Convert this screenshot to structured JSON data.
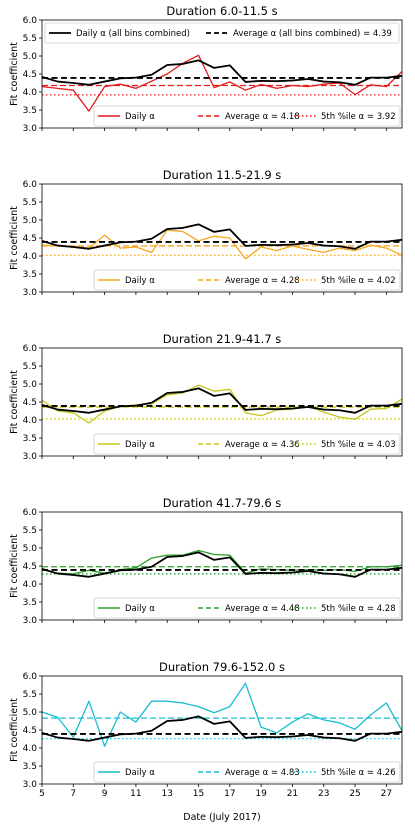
{
  "chart_data": {
    "type": "line",
    "shared": {
      "x_dates": [
        5,
        6,
        7,
        8,
        9,
        10,
        11,
        12,
        13,
        14,
        15,
        16,
        17,
        18,
        19,
        20,
        21,
        22,
        23,
        24,
        25,
        26,
        27,
        28
      ],
      "x_ticks": [
        5,
        7,
        9,
        11,
        13,
        15,
        17,
        19,
        21,
        23,
        25,
        27
      ],
      "xlim": [
        5,
        28
      ],
      "ylim": [
        3.0,
        6.0
      ],
      "y_ticks": [
        3.0,
        3.5,
        4.0,
        4.5,
        5.0,
        5.5,
        6.0
      ],
      "xlabel": "Date (July 2017)",
      "ylabel": "Fit coefficient",
      "combined_series": {
        "name": "Daily α (all bins combined)",
        "color": "#000000",
        "values": [
          4.42,
          4.29,
          4.25,
          4.2,
          4.29,
          4.38,
          4.4,
          4.48,
          4.75,
          4.78,
          4.88,
          4.67,
          4.74,
          4.28,
          4.31,
          4.3,
          4.32,
          4.36,
          4.29,
          4.27,
          4.2,
          4.4,
          4.4,
          4.45
        ]
      },
      "combined_average": {
        "name": "Average α (all bins combined) = 4.39",
        "value": 4.39
      }
    },
    "panels": [
      {
        "title": "Duration 6.0-11.5 s",
        "color": "#e41a1c",
        "daily": {
          "name": "Daily α",
          "values": [
            4.15,
            4.1,
            4.05,
            3.47,
            4.15,
            4.22,
            4.1,
            4.3,
            4.5,
            4.8,
            5.02,
            4.12,
            4.28,
            4.05,
            4.21,
            4.1,
            4.18,
            4.15,
            4.22,
            4.25,
            3.93,
            4.2,
            4.15,
            4.57
          ]
        },
        "average": {
          "name": "Average α = 4.18",
          "value": 4.18
        },
        "percentile5": {
          "name": "5th %ile α = 3.92",
          "value": 3.92
        },
        "show_combined_legend": true
      },
      {
        "title": "Duration 11.5-21.9 s",
        "color": "#f5a623",
        "daily": {
          "name": "Daily α",
          "values": [
            4.3,
            4.28,
            4.27,
            4.22,
            4.58,
            4.22,
            4.25,
            4.1,
            4.72,
            4.68,
            4.42,
            4.55,
            4.5,
            3.92,
            4.25,
            4.15,
            4.28,
            4.18,
            4.1,
            4.22,
            4.15,
            4.3,
            4.22,
            4.02
          ]
        },
        "average": {
          "name": "Average α = 4.28",
          "value": 4.28
        },
        "percentile5": {
          "name": "5th %ile α = 4.02",
          "value": 4.02
        },
        "show_combined_legend": false
      },
      {
        "title": "Duration 21.9-41.7 s",
        "color": "#c5c51a",
        "daily": {
          "name": "Daily α",
          "values": [
            4.55,
            4.25,
            4.2,
            3.92,
            4.25,
            4.38,
            4.42,
            4.45,
            4.7,
            4.75,
            4.97,
            4.8,
            4.85,
            4.2,
            4.12,
            4.28,
            4.3,
            4.38,
            4.22,
            4.08,
            4.02,
            4.3,
            4.32,
            4.58
          ]
        },
        "average": {
          "name": "Average α = 4.36",
          "value": 4.36
        },
        "percentile5": {
          "name": "5th %ile α = 4.03",
          "value": 4.03
        },
        "show_combined_legend": false
      },
      {
        "title": "Duration 41.7-79.6 s",
        "color": "#2ca02c",
        "daily": {
          "name": "Daily α",
          "values": [
            4.4,
            4.3,
            4.28,
            4.38,
            4.3,
            4.4,
            4.45,
            4.72,
            4.8,
            4.8,
            4.93,
            4.82,
            4.8,
            4.3,
            4.42,
            4.4,
            4.38,
            4.4,
            4.38,
            4.4,
            4.35,
            4.48,
            4.48,
            4.52
          ]
        },
        "average": {
          "name": "Average α = 4.48",
          "value": 4.48
        },
        "percentile5": {
          "name": "5th %ile α = 4.28",
          "value": 4.28
        },
        "show_combined_legend": false
      },
      {
        "title": "Duration 79.6-152.0 s",
        "color": "#17becf",
        "daily": {
          "name": "Daily α",
          "values": [
            5.0,
            4.85,
            4.3,
            5.3,
            4.05,
            5.0,
            4.72,
            5.3,
            5.3,
            5.25,
            5.15,
            4.98,
            5.15,
            5.8,
            4.58,
            4.42,
            4.72,
            4.95,
            4.78,
            4.7,
            4.52,
            4.92,
            5.25,
            4.48
          ]
        },
        "average": {
          "name": "Average α = 4.83",
          "value": 4.83
        },
        "percentile5": {
          "name": "5th %ile α = 4.26",
          "value": 4.26
        },
        "show_combined_legend": false
      }
    ]
  }
}
